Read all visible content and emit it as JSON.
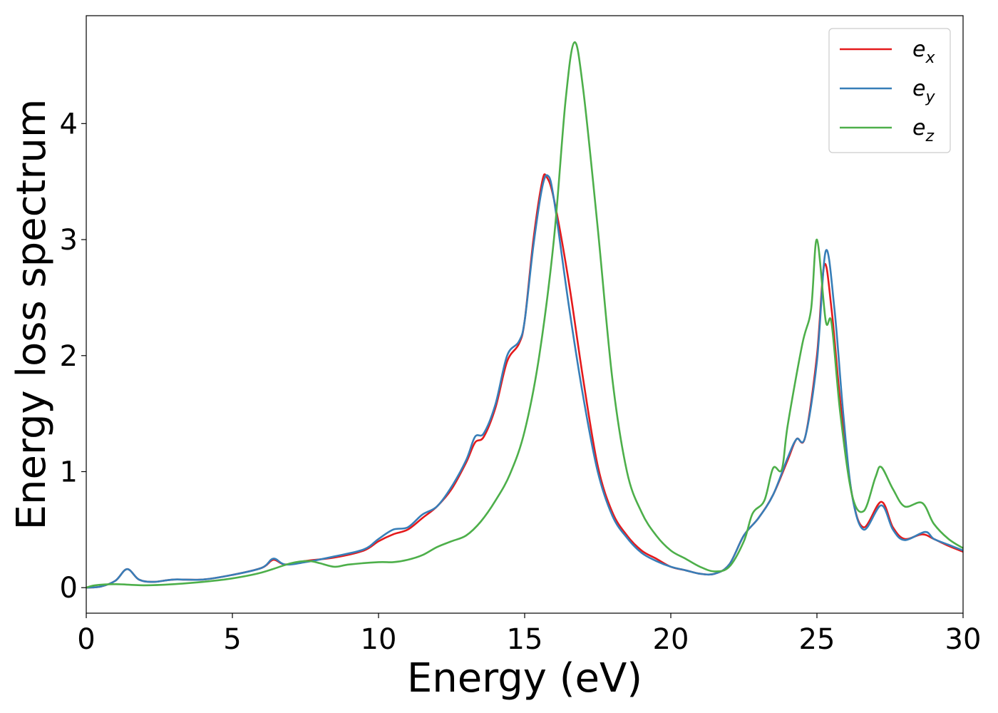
{
  "chart_data": {
    "type": "line",
    "xlabel": "Energy (eV)",
    "ylabel": "Energy loss spectrum",
    "xlim": [
      0,
      30
    ],
    "ylim": [
      -0.22,
      4.93
    ],
    "xticks": [
      0,
      5,
      10,
      15,
      20,
      25,
      30
    ],
    "xtick_labels": [
      "0",
      "5",
      "10",
      "15",
      "20",
      "25",
      "30"
    ],
    "yticks": [
      0,
      1,
      2,
      3,
      4
    ],
    "ytick_labels": [
      "0",
      "1",
      "2",
      "3",
      "4"
    ],
    "grid": false,
    "legend_position": "top-right",
    "series": [
      {
        "name": "e_x",
        "label_base": "e",
        "label_sub": "x",
        "color": "#e41a1c",
        "points": [
          [
            0,
            0
          ],
          [
            0.5,
            0.01
          ],
          [
            1.0,
            0.06
          ],
          [
            1.4,
            0.16
          ],
          [
            1.8,
            0.07
          ],
          [
            2.3,
            0.05
          ],
          [
            3.0,
            0.07
          ],
          [
            4.0,
            0.07
          ],
          [
            5.0,
            0.11
          ],
          [
            6.0,
            0.17
          ],
          [
            6.4,
            0.24
          ],
          [
            6.8,
            0.2
          ],
          [
            7.5,
            0.23
          ],
          [
            8.5,
            0.26
          ],
          [
            9.5,
            0.32
          ],
          [
            10.0,
            0.4
          ],
          [
            10.5,
            0.46
          ],
          [
            11.0,
            0.5
          ],
          [
            11.5,
            0.6
          ],
          [
            12.0,
            0.7
          ],
          [
            12.5,
            0.85
          ],
          [
            13.0,
            1.08
          ],
          [
            13.3,
            1.25
          ],
          [
            13.6,
            1.3
          ],
          [
            14.0,
            1.55
          ],
          [
            14.4,
            1.95
          ],
          [
            14.8,
            2.1
          ],
          [
            15.0,
            2.3
          ],
          [
            15.3,
            3.0
          ],
          [
            15.6,
            3.5
          ],
          [
            15.75,
            3.54
          ],
          [
            16.0,
            3.35
          ],
          [
            16.5,
            2.65
          ],
          [
            17.0,
            1.8
          ],
          [
            17.5,
            1.05
          ],
          [
            18.0,
            0.65
          ],
          [
            18.5,
            0.45
          ],
          [
            19.0,
            0.32
          ],
          [
            19.5,
            0.25
          ],
          [
            20.0,
            0.18
          ],
          [
            20.5,
            0.15
          ],
          [
            21.0,
            0.12
          ],
          [
            21.5,
            0.12
          ],
          [
            22.0,
            0.2
          ],
          [
            22.5,
            0.45
          ],
          [
            23.0,
            0.6
          ],
          [
            23.5,
            0.8
          ],
          [
            24.0,
            1.1
          ],
          [
            24.3,
            1.28
          ],
          [
            24.6,
            1.3
          ],
          [
            25.0,
            2.0
          ],
          [
            25.25,
            2.78
          ],
          [
            25.5,
            2.4
          ],
          [
            25.8,
            1.6
          ],
          [
            26.2,
            0.8
          ],
          [
            26.6,
            0.52
          ],
          [
            27.2,
            0.74
          ],
          [
            27.6,
            0.52
          ],
          [
            28.0,
            0.42
          ],
          [
            28.6,
            0.46
          ],
          [
            29.0,
            0.42
          ],
          [
            29.5,
            0.36
          ],
          [
            30.0,
            0.31
          ]
        ]
      },
      {
        "name": "e_y",
        "label_base": "e",
        "label_sub": "y",
        "color": "#377eb8",
        "points": [
          [
            0,
            0
          ],
          [
            0.5,
            0.01
          ],
          [
            1.0,
            0.06
          ],
          [
            1.4,
            0.16
          ],
          [
            1.8,
            0.07
          ],
          [
            2.3,
            0.05
          ],
          [
            3.0,
            0.07
          ],
          [
            4.0,
            0.07
          ],
          [
            5.0,
            0.11
          ],
          [
            6.0,
            0.17
          ],
          [
            6.4,
            0.25
          ],
          [
            6.8,
            0.2
          ],
          [
            7.5,
            0.22
          ],
          [
            8.5,
            0.27
          ],
          [
            9.5,
            0.33
          ],
          [
            10.0,
            0.42
          ],
          [
            10.5,
            0.5
          ],
          [
            11.0,
            0.52
          ],
          [
            11.5,
            0.63
          ],
          [
            12.0,
            0.7
          ],
          [
            12.5,
            0.87
          ],
          [
            13.0,
            1.1
          ],
          [
            13.3,
            1.3
          ],
          [
            13.6,
            1.33
          ],
          [
            14.0,
            1.58
          ],
          [
            14.4,
            2.0
          ],
          [
            14.8,
            2.12
          ],
          [
            15.0,
            2.3
          ],
          [
            15.3,
            2.95
          ],
          [
            15.6,
            3.45
          ],
          [
            15.8,
            3.55
          ],
          [
            16.0,
            3.35
          ],
          [
            16.5,
            2.45
          ],
          [
            17.0,
            1.65
          ],
          [
            17.5,
            1.0
          ],
          [
            18.0,
            0.62
          ],
          [
            18.5,
            0.43
          ],
          [
            19.0,
            0.3
          ],
          [
            19.5,
            0.23
          ],
          [
            20.0,
            0.18
          ],
          [
            20.5,
            0.15
          ],
          [
            21.0,
            0.12
          ],
          [
            21.5,
            0.12
          ],
          [
            22.0,
            0.2
          ],
          [
            22.5,
            0.45
          ],
          [
            23.0,
            0.6
          ],
          [
            23.5,
            0.8
          ],
          [
            24.0,
            1.12
          ],
          [
            24.3,
            1.28
          ],
          [
            24.6,
            1.3
          ],
          [
            25.0,
            1.95
          ],
          [
            25.3,
            2.9
          ],
          [
            25.6,
            2.4
          ],
          [
            25.9,
            1.5
          ],
          [
            26.2,
            0.8
          ],
          [
            26.6,
            0.5
          ],
          [
            27.2,
            0.71
          ],
          [
            27.6,
            0.5
          ],
          [
            28.0,
            0.41
          ],
          [
            28.7,
            0.48
          ],
          [
            29.0,
            0.42
          ],
          [
            29.5,
            0.37
          ],
          [
            30.0,
            0.32
          ]
        ]
      },
      {
        "name": "e_z",
        "label_base": "e",
        "label_sub": "z",
        "color": "#4daf4a",
        "points": [
          [
            0,
            0
          ],
          [
            0.3,
            0.02
          ],
          [
            1.0,
            0.03
          ],
          [
            2.0,
            0.02
          ],
          [
            3.0,
            0.03
          ],
          [
            4.0,
            0.05
          ],
          [
            5.0,
            0.08
          ],
          [
            6.0,
            0.13
          ],
          [
            7.0,
            0.21
          ],
          [
            7.6,
            0.23
          ],
          [
            8.0,
            0.21
          ],
          [
            8.5,
            0.18
          ],
          [
            9.0,
            0.2
          ],
          [
            10.0,
            0.22
          ],
          [
            10.5,
            0.22
          ],
          [
            11.0,
            0.24
          ],
          [
            11.5,
            0.28
          ],
          [
            12.0,
            0.35
          ],
          [
            12.5,
            0.4
          ],
          [
            13.0,
            0.45
          ],
          [
            13.5,
            0.57
          ],
          [
            14.0,
            0.75
          ],
          [
            14.5,
            0.98
          ],
          [
            15.0,
            1.35
          ],
          [
            15.5,
            2.0
          ],
          [
            16.0,
            3.0
          ],
          [
            16.4,
            4.2
          ],
          [
            16.7,
            4.7
          ],
          [
            17.0,
            4.3
          ],
          [
            17.5,
            3.1
          ],
          [
            18.0,
            1.8
          ],
          [
            18.5,
            1.0
          ],
          [
            19.0,
            0.65
          ],
          [
            19.5,
            0.45
          ],
          [
            20.0,
            0.32
          ],
          [
            20.5,
            0.25
          ],
          [
            21.0,
            0.18
          ],
          [
            21.5,
            0.14
          ],
          [
            22.0,
            0.18
          ],
          [
            22.5,
            0.4
          ],
          [
            22.8,
            0.64
          ],
          [
            23.2,
            0.75
          ],
          [
            23.5,
            1.03
          ],
          [
            23.8,
            1.02
          ],
          [
            24.0,
            1.4
          ],
          [
            24.5,
            2.1
          ],
          [
            24.8,
            2.4
          ],
          [
            25.0,
            3.0
          ],
          [
            25.3,
            2.3
          ],
          [
            25.5,
            2.28
          ],
          [
            25.8,
            1.5
          ],
          [
            26.2,
            0.8
          ],
          [
            26.6,
            0.66
          ],
          [
            27.0,
            0.95
          ],
          [
            27.2,
            1.04
          ],
          [
            27.6,
            0.85
          ],
          [
            28.0,
            0.7
          ],
          [
            28.6,
            0.73
          ],
          [
            29.0,
            0.55
          ],
          [
            29.5,
            0.42
          ],
          [
            30.0,
            0.34
          ]
        ]
      }
    ]
  }
}
